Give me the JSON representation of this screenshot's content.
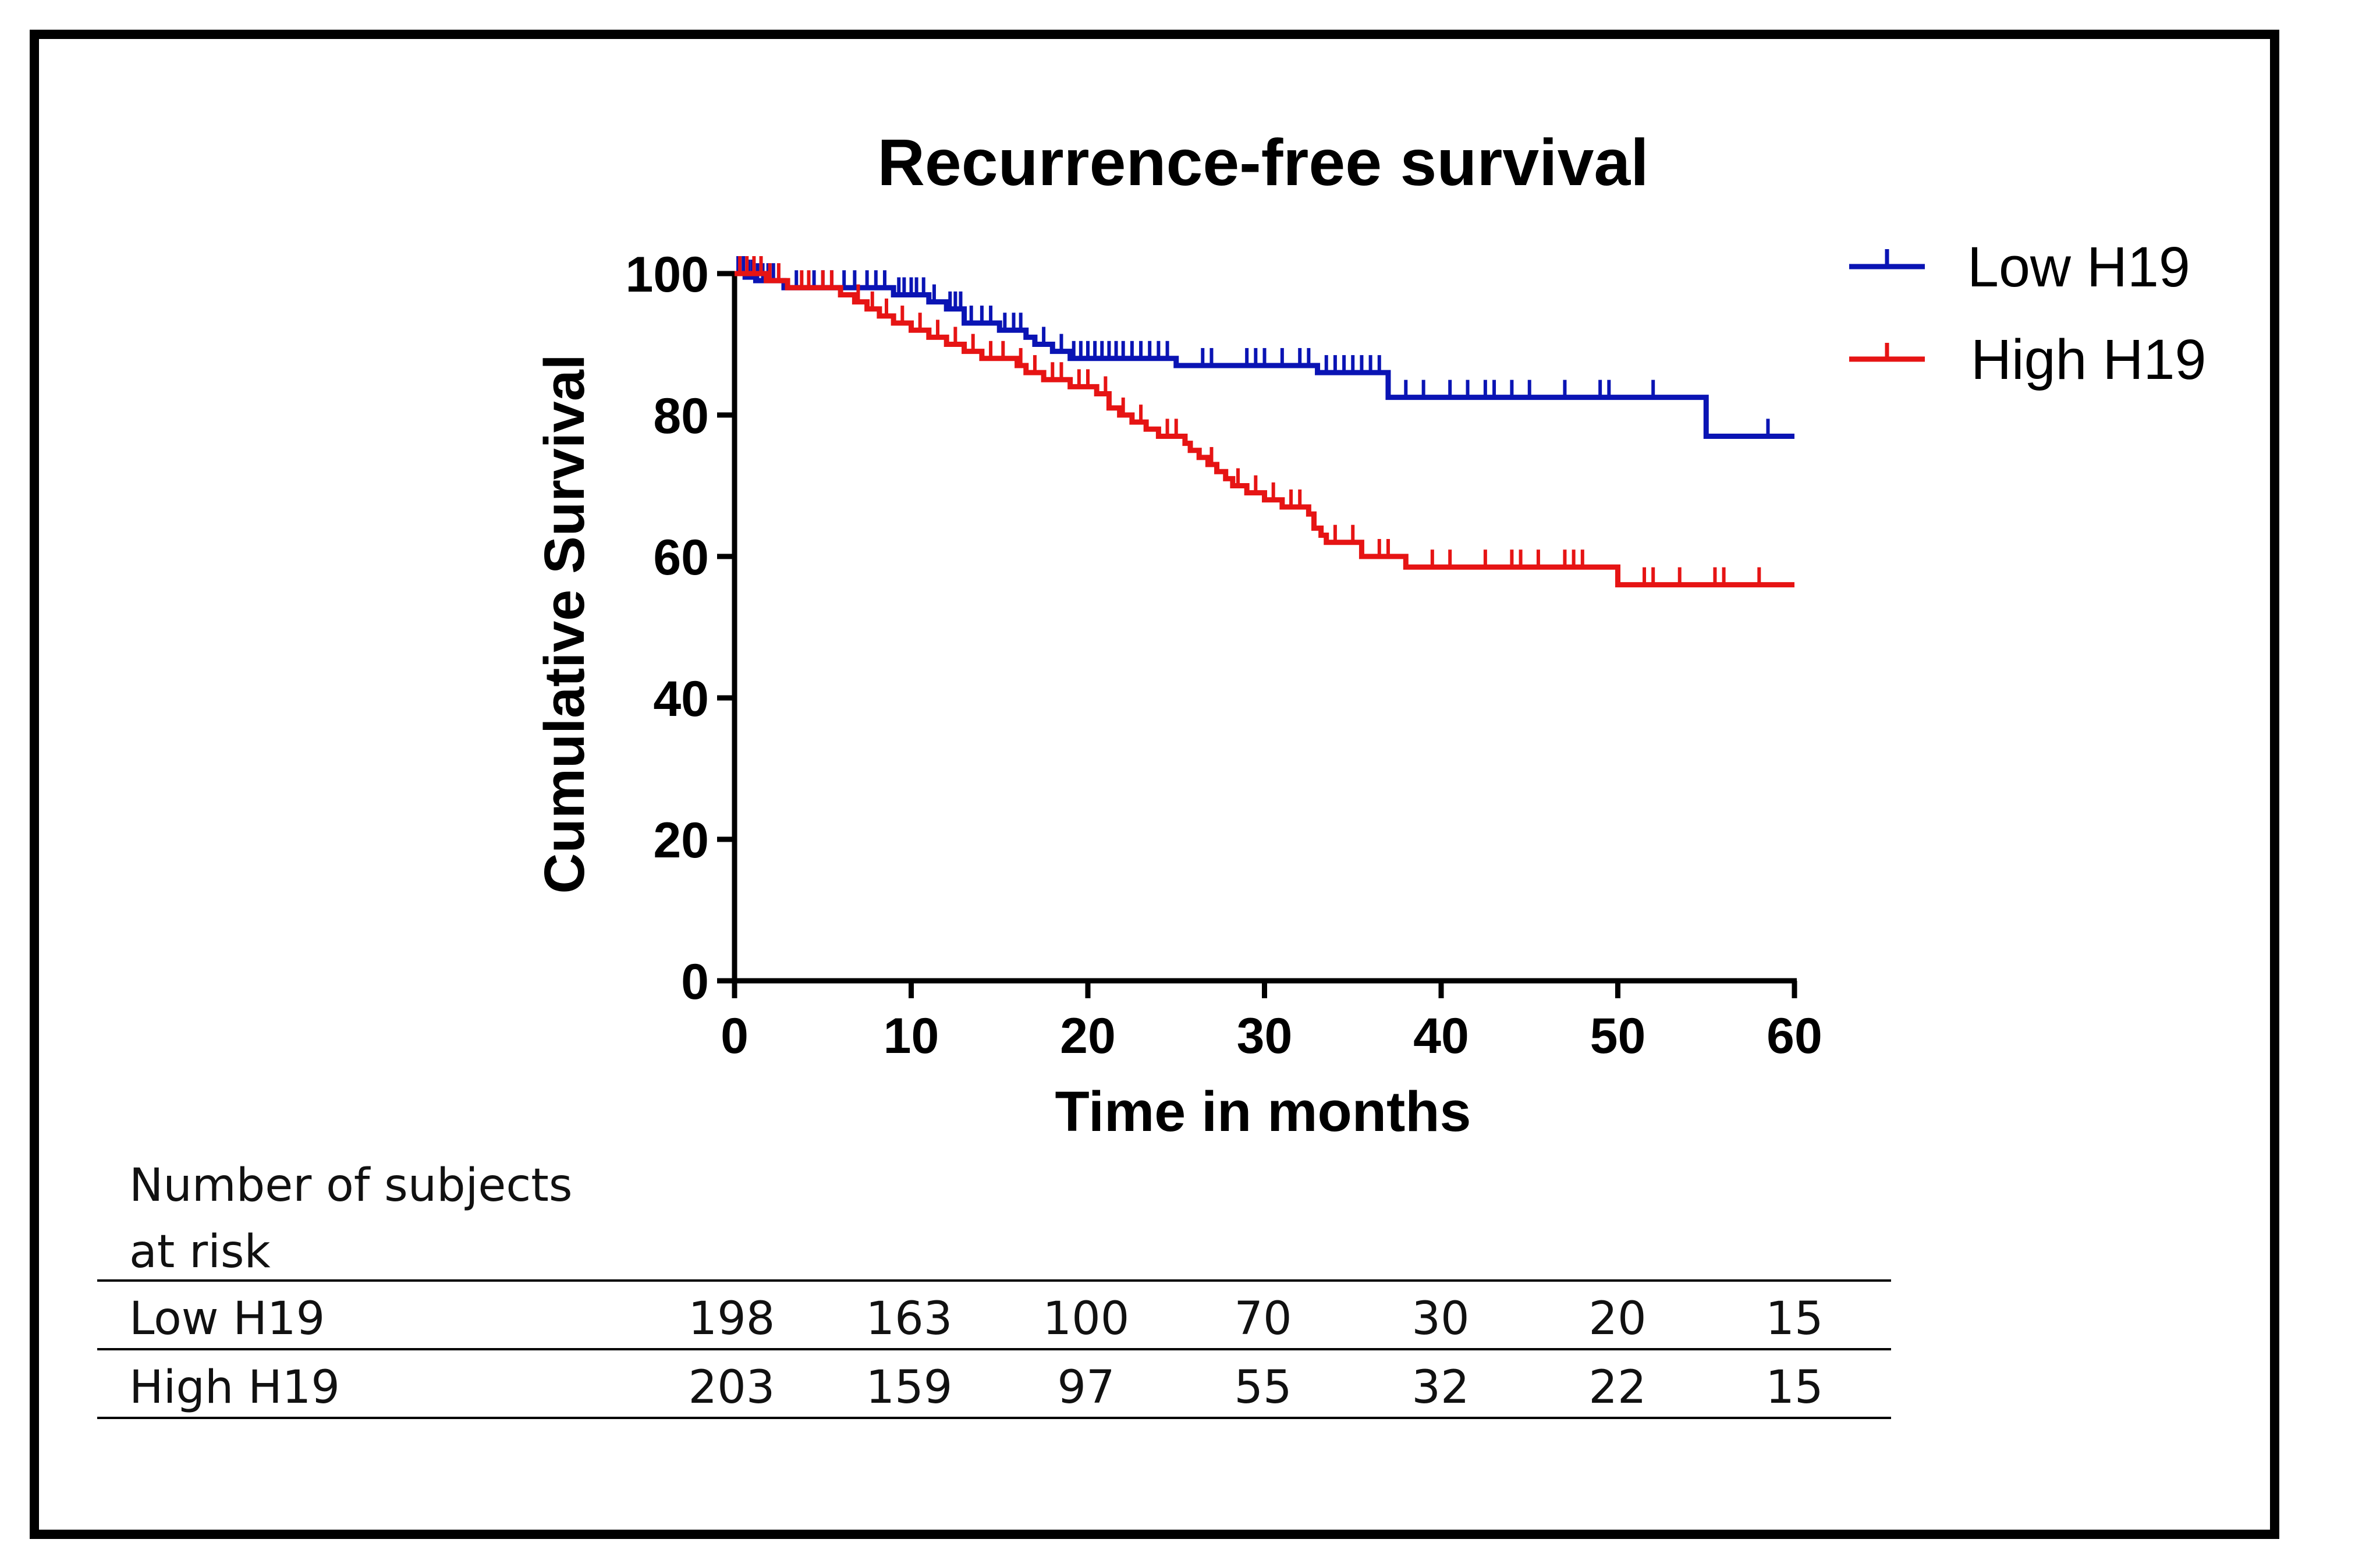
{
  "chart_data": {
    "type": "line",
    "subtype": "kaplan-meier",
    "title": "Recurrence-free survival",
    "xlabel": "Time in months",
    "ylabel": "Cumulative Survival",
    "xlim": [
      0,
      60
    ],
    "ylim": [
      0,
      100
    ],
    "xticks": [
      0,
      10,
      20,
      30,
      40,
      50,
      60
    ],
    "yticks": [
      0,
      20,
      40,
      60,
      80,
      100
    ],
    "grid": false,
    "legend_position": "top-right",
    "series": [
      {
        "name": "Low H19",
        "color": "#0a14b4",
        "steps": [
          [
            0,
            100
          ],
          [
            0.6,
            99.5
          ],
          [
            1.2,
            99
          ],
          [
            2.8,
            98
          ],
          [
            9,
            97
          ],
          [
            11,
            96
          ],
          [
            12,
            95
          ],
          [
            13,
            93
          ],
          [
            15,
            92
          ],
          [
            16.5,
            91
          ],
          [
            17,
            90
          ],
          [
            18,
            89
          ],
          [
            19,
            88
          ],
          [
            25,
            87
          ],
          [
            33,
            86
          ],
          [
            37,
            82.5
          ],
          [
            55,
            77
          ],
          [
            60,
            77
          ]
        ],
        "censor_times": [
          0.2,
          0.5,
          0.8,
          1.0,
          1.3,
          1.6,
          1.9,
          2.2,
          3.5,
          4.5,
          5.0,
          5.5,
          6.2,
          6.8,
          7.5,
          8.0,
          8.5,
          9.3,
          9.6,
          10.0,
          10.3,
          10.7,
          11.3,
          12.2,
          12.5,
          12.8,
          13.4,
          14.0,
          14.5,
          15.3,
          15.8,
          16.2,
          17.5,
          18.5,
          19.2,
          19.6,
          20.0,
          20.4,
          20.8,
          21.2,
          21.6,
          22.0,
          22.5,
          23.0,
          23.5,
          24.0,
          24.5,
          26.5,
          27.0,
          29.0,
          29.5,
          30.0,
          31.0,
          32.0,
          32.5,
          33.5,
          34.0,
          34.5,
          35.0,
          35.5,
          36.0,
          36.5,
          38.0,
          39.0,
          40.5,
          41.5,
          42.5,
          43.0,
          44.0,
          45.0,
          47.0,
          49.0,
          49.5,
          52.0,
          55.0,
          58.5
        ]
      },
      {
        "name": "High H19",
        "color": "#e61414",
        "steps": [
          [
            0,
            100
          ],
          [
            1.8,
            99
          ],
          [
            3,
            98
          ],
          [
            6,
            97
          ],
          [
            6.8,
            96
          ],
          [
            7.5,
            95
          ],
          [
            8.2,
            94
          ],
          [
            9,
            93
          ],
          [
            10,
            92
          ],
          [
            11,
            91
          ],
          [
            12,
            90
          ],
          [
            13,
            89
          ],
          [
            14,
            88
          ],
          [
            16,
            87
          ],
          [
            16.5,
            86
          ],
          [
            17.5,
            85
          ],
          [
            19,
            84
          ],
          [
            20.5,
            83
          ],
          [
            21.2,
            81
          ],
          [
            21.8,
            80
          ],
          [
            22.5,
            79
          ],
          [
            23.3,
            78
          ],
          [
            24,
            77
          ],
          [
            25.5,
            76
          ],
          [
            25.8,
            75
          ],
          [
            26.3,
            74
          ],
          [
            26.8,
            73
          ],
          [
            27.3,
            72
          ],
          [
            27.8,
            71
          ],
          [
            28.2,
            70
          ],
          [
            29,
            69
          ],
          [
            30,
            68
          ],
          [
            31,
            67
          ],
          [
            32.5,
            66
          ],
          [
            32.8,
            64
          ],
          [
            33.2,
            63
          ],
          [
            33.5,
            62
          ],
          [
            35.5,
            60
          ],
          [
            38,
            58.5
          ],
          [
            50,
            56
          ],
          [
            60,
            56
          ]
        ],
        "censor_times": [
          0.3,
          0.7,
          1.1,
          1.5,
          2.0,
          2.5,
          3.8,
          4.2,
          5.0,
          5.5,
          7.0,
          7.8,
          8.6,
          9.5,
          10.5,
          11.5,
          12.5,
          13.5,
          14.5,
          15.2,
          16.2,
          17.0,
          18.0,
          18.5,
          19.5,
          20.0,
          21.0,
          22.0,
          23.0,
          24.5,
          25.0,
          27.0,
          28.5,
          29.5,
          30.5,
          31.5,
          32.0,
          34.0,
          35.0,
          36.5,
          37.0,
          39.5,
          40.5,
          42.5,
          44.0,
          44.5,
          45.5,
          47.0,
          47.5,
          48.0,
          51.5,
          52.0,
          53.5,
          55.5,
          56.0,
          58.0
        ]
      }
    ]
  },
  "risk_table": {
    "heading_line1": "Number of subjects",
    "heading_line2": "at risk",
    "rows": [
      {
        "label": "Low H19",
        "values": [
          "198",
          "163",
          "100",
          "70",
          "30",
          "20",
          "15"
        ]
      },
      {
        "label": "High H19",
        "values": [
          "203",
          "159",
          "97",
          "55",
          "32",
          "22",
          "15"
        ]
      }
    ]
  }
}
